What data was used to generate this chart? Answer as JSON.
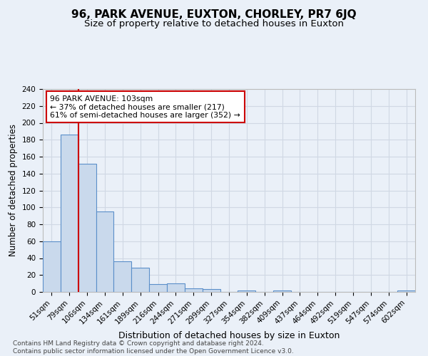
{
  "title": "96, PARK AVENUE, EUXTON, CHORLEY, PR7 6JQ",
  "subtitle": "Size of property relative to detached houses in Euxton",
  "xlabel": "Distribution of detached houses by size in Euxton",
  "ylabel": "Number of detached properties",
  "bar_labels": [
    "51sqm",
    "79sqm",
    "106sqm",
    "134sqm",
    "161sqm",
    "189sqm",
    "216sqm",
    "244sqm",
    "271sqm",
    "299sqm",
    "327sqm",
    "354sqm",
    "382sqm",
    "409sqm",
    "437sqm",
    "464sqm",
    "492sqm",
    "519sqm",
    "547sqm",
    "574sqm",
    "602sqm"
  ],
  "bar_values": [
    60,
    186,
    152,
    95,
    36,
    29,
    9,
    10,
    4,
    3,
    0,
    2,
    0,
    2,
    0,
    0,
    0,
    0,
    0,
    0,
    2
  ],
  "bar_color": "#c9d9ec",
  "bar_edge_color": "#5b8fc9",
  "grid_color": "#d0d8e4",
  "background_color": "#eaf0f8",
  "annotation_text": "96 PARK AVENUE: 103sqm\n← 37% of detached houses are smaller (217)\n61% of semi-detached houses are larger (352) →",
  "annotation_box_color": "#ffffff",
  "annotation_box_edge": "#cc0000",
  "redline_color": "#cc0000",
  "ylim": [
    0,
    240
  ],
  "yticks": [
    0,
    20,
    40,
    60,
    80,
    100,
    120,
    140,
    160,
    180,
    200,
    220,
    240
  ],
  "footer": "Contains HM Land Registry data © Crown copyright and database right 2024.\nContains public sector information licensed under the Open Government Licence v3.0.",
  "title_fontsize": 11,
  "subtitle_fontsize": 9.5,
  "ylabel_fontsize": 8.5,
  "xlabel_fontsize": 9,
  "tick_fontsize": 7.5,
  "footer_fontsize": 6.5
}
